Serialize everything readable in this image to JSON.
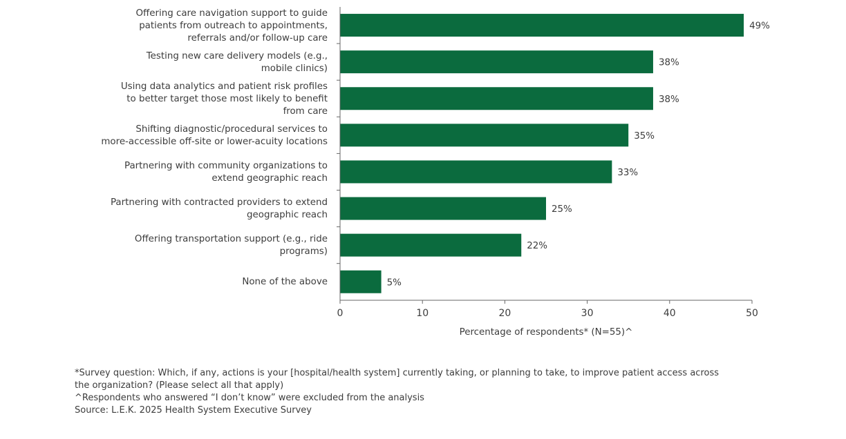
{
  "chart_data": {
    "type": "bar",
    "orientation": "horizontal",
    "categories": [
      "Offering care navigation support to guide patients from outreach to appointments, referrals and/or follow-up care",
      "Testing new care delivery models (e.g., mobile clinics)",
      "Using data analytics and patient risk profiles to better target those most likely to benefit from care",
      "Shifting diagnostic/procedural services to more-accessible off-site or lower-acuity locations",
      "Partnering with community organizations to extend geographic reach",
      "Partnering with contracted providers to extend geographic reach",
      "Offering transportation support (e.g., ride programs)",
      "None of the above"
    ],
    "category_lines": [
      [
        "Offering care navigation support to guide",
        "patients from outreach to appointments,",
        "referrals and/or follow-up care"
      ],
      [
        "Testing new care delivery models (e.g.,",
        "mobile clinics)"
      ],
      [
        "Using data analytics and patient risk profiles",
        "to better target those most likely to benefit",
        "from care"
      ],
      [
        "Shifting diagnostic/procedural services to",
        "more-accessible off-site or lower-acuity locations"
      ],
      [
        "Partnering with community organizations to",
        "extend geographic reach"
      ],
      [
        "Partnering with contracted providers to extend",
        "geographic reach"
      ],
      [
        "Offering transportation support (e.g., ride",
        "programs)"
      ],
      [
        "None of the above"
      ]
    ],
    "values": [
      49,
      38,
      38,
      35,
      33,
      25,
      22,
      5
    ],
    "data_labels": [
      "49%",
      "38%",
      "38%",
      "35%",
      "33%",
      "25%",
      "22%",
      "5%"
    ],
    "xlabel": "Percentage of respondents* (N=55)^",
    "xlim": [
      0,
      50
    ],
    "xticks": [
      0,
      10,
      20,
      30,
      40,
      50
    ],
    "grid": false,
    "bar_color": "#0b6b3e"
  },
  "footnotes": [
    "*Survey question: Which, if any, actions is your [hospital/health system] currently taking, or planning to take, to improve patient access across",
    "the organization? (Please select all that apply)",
    "^Respondents who answered “I don’t know” were excluded from the analysis",
    "Source: L.E.K. 2025 Health System Executive Survey"
  ]
}
